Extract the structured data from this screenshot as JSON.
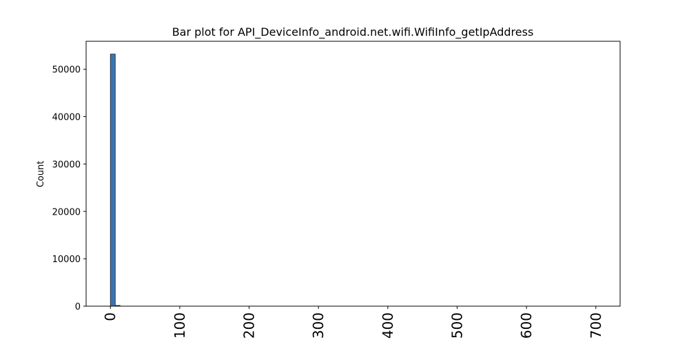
{
  "chart_data": {
    "type": "bar",
    "title": "Bar plot for API_DeviceInfo_android.net.wifi.WifiInfo_getIpAddress",
    "xlabel": "",
    "ylabel": "Count",
    "xlim": [
      -35,
      735
    ],
    "ylim": [
      0,
      55900
    ],
    "x_ticks": [
      0,
      100,
      200,
      300,
      400,
      500,
      600,
      700
    ],
    "y_ticks": [
      0,
      10000,
      20000,
      30000,
      40000,
      50000
    ],
    "bars": [
      {
        "x0": 0,
        "x1": 7,
        "value": 53200
      },
      {
        "x0": 7,
        "x1": 14,
        "value": 150
      }
    ],
    "bar_color": "#3b75af",
    "grid": false
  }
}
